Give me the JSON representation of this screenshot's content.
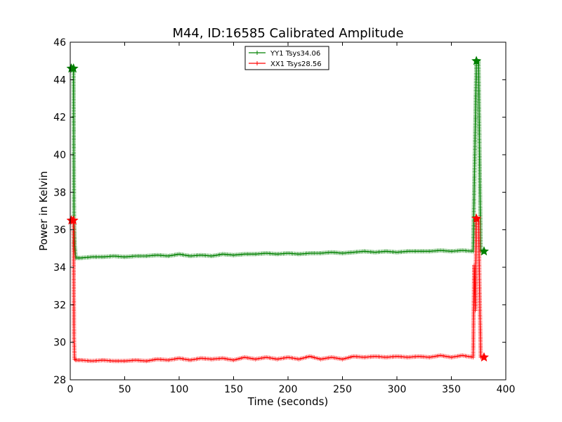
{
  "chart_data": {
    "type": "line",
    "title": "M44, ID:16585 Calibrated Amplitude",
    "xlabel": "Time (seconds)",
    "ylabel": "Power in Kelvin",
    "xlim": [
      0,
      400
    ],
    "ylim": [
      28,
      46
    ],
    "x_ticks": [
      0,
      50,
      100,
      150,
      200,
      250,
      300,
      350,
      400
    ],
    "y_ticks": [
      28,
      30,
      32,
      34,
      36,
      38,
      40,
      42,
      44,
      46
    ],
    "grid": false,
    "legend_position": "top-center",
    "series": [
      {
        "name": "YY1 Tsys34.06",
        "color": "#008000",
        "x": [
          1,
          3,
          3.5,
          4,
          5,
          10,
          20,
          30,
          40,
          50,
          60,
          70,
          80,
          90,
          100,
          110,
          120,
          130,
          140,
          150,
          160,
          170,
          180,
          190,
          200,
          210,
          220,
          230,
          240,
          250,
          260,
          270,
          280,
          290,
          300,
          310,
          320,
          330,
          340,
          350,
          360,
          370,
          371,
          372,
          373,
          374,
          375,
          376,
          377,
          378,
          380
        ],
        "values": [
          44.6,
          44.6,
          36.5,
          35.2,
          34.5,
          34.5,
          34.55,
          34.55,
          34.6,
          34.55,
          34.6,
          34.6,
          34.65,
          34.6,
          34.7,
          34.6,
          34.65,
          34.6,
          34.7,
          34.65,
          34.7,
          34.7,
          34.75,
          34.7,
          34.75,
          34.7,
          34.75,
          34.75,
          34.8,
          34.75,
          34.8,
          34.85,
          34.8,
          34.85,
          34.8,
          34.85,
          34.85,
          34.85,
          34.9,
          34.85,
          34.9,
          34.85,
          38.2,
          41.6,
          45.0,
          45.0,
          45.0,
          39.5,
          34.85,
          34.85,
          34.85
        ]
      },
      {
        "name": "XX1 Tsys28.56",
        "color": "#ff0000",
        "x": [
          1,
          3,
          3.5,
          4,
          5,
          10,
          20,
          30,
          40,
          50,
          60,
          70,
          80,
          90,
          100,
          110,
          120,
          130,
          140,
          150,
          160,
          170,
          180,
          190,
          200,
          210,
          220,
          230,
          240,
          250,
          260,
          270,
          280,
          290,
          300,
          310,
          320,
          330,
          340,
          350,
          360,
          370,
          371,
          372,
          373,
          374,
          375,
          376,
          377,
          378,
          380
        ],
        "values": [
          36.5,
          36.5,
          30.2,
          29.1,
          29.05,
          29.05,
          29.0,
          29.05,
          29.0,
          29.0,
          29.05,
          29.0,
          29.1,
          29.05,
          29.15,
          29.05,
          29.15,
          29.1,
          29.15,
          29.05,
          29.2,
          29.1,
          29.2,
          29.1,
          29.2,
          29.1,
          29.25,
          29.1,
          29.2,
          29.1,
          29.25,
          29.2,
          29.25,
          29.2,
          29.25,
          29.2,
          29.25,
          29.2,
          29.3,
          29.2,
          29.3,
          29.2,
          34.1,
          31.7,
          36.6,
          36.6,
          36.6,
          32.6,
          29.2,
          29.2,
          29.2
        ]
      }
    ]
  }
}
